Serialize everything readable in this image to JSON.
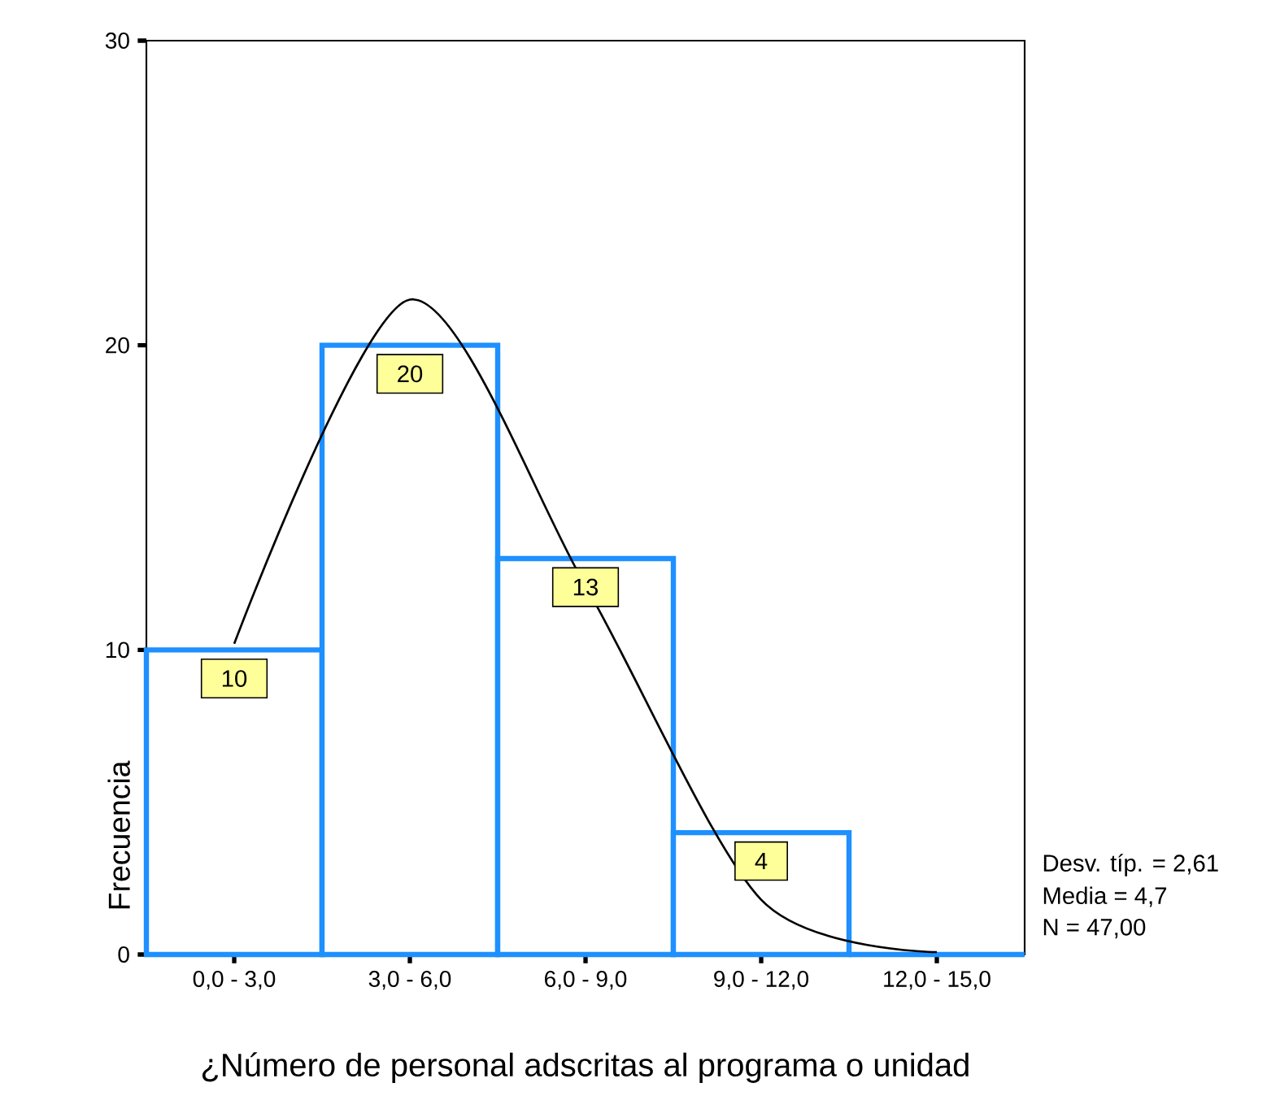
{
  "chart_data": {
    "type": "bar",
    "xlabel": "¿Número de personal adscritas al programa o unidad",
    "ylabel": "Frecuencia",
    "categories": [
      "0,0 - 3,0",
      "3,0 - 6,0",
      "6,0 - 9,0",
      "9,0 - 12,0",
      "12,0 - 15,0"
    ],
    "values": [
      10,
      20,
      13,
      4,
      0
    ],
    "color": "#1e90ff",
    "value_labels": [
      "10",
      "20",
      "13",
      "4",
      null
    ],
    "ylim": [
      0,
      30
    ],
    "yticks": [
      0,
      10,
      20,
      30
    ],
    "series": [
      {
        "type": "line",
        "color": "#000000",
        "values": [
          10.2,
          21.5,
          12.1,
          1.8,
          0.08
        ]
      }
    ],
    "annotations": [
      "Desv. típ. = 2,61",
      "Media = 4,7",
      "N = 47,00"
    ]
  }
}
